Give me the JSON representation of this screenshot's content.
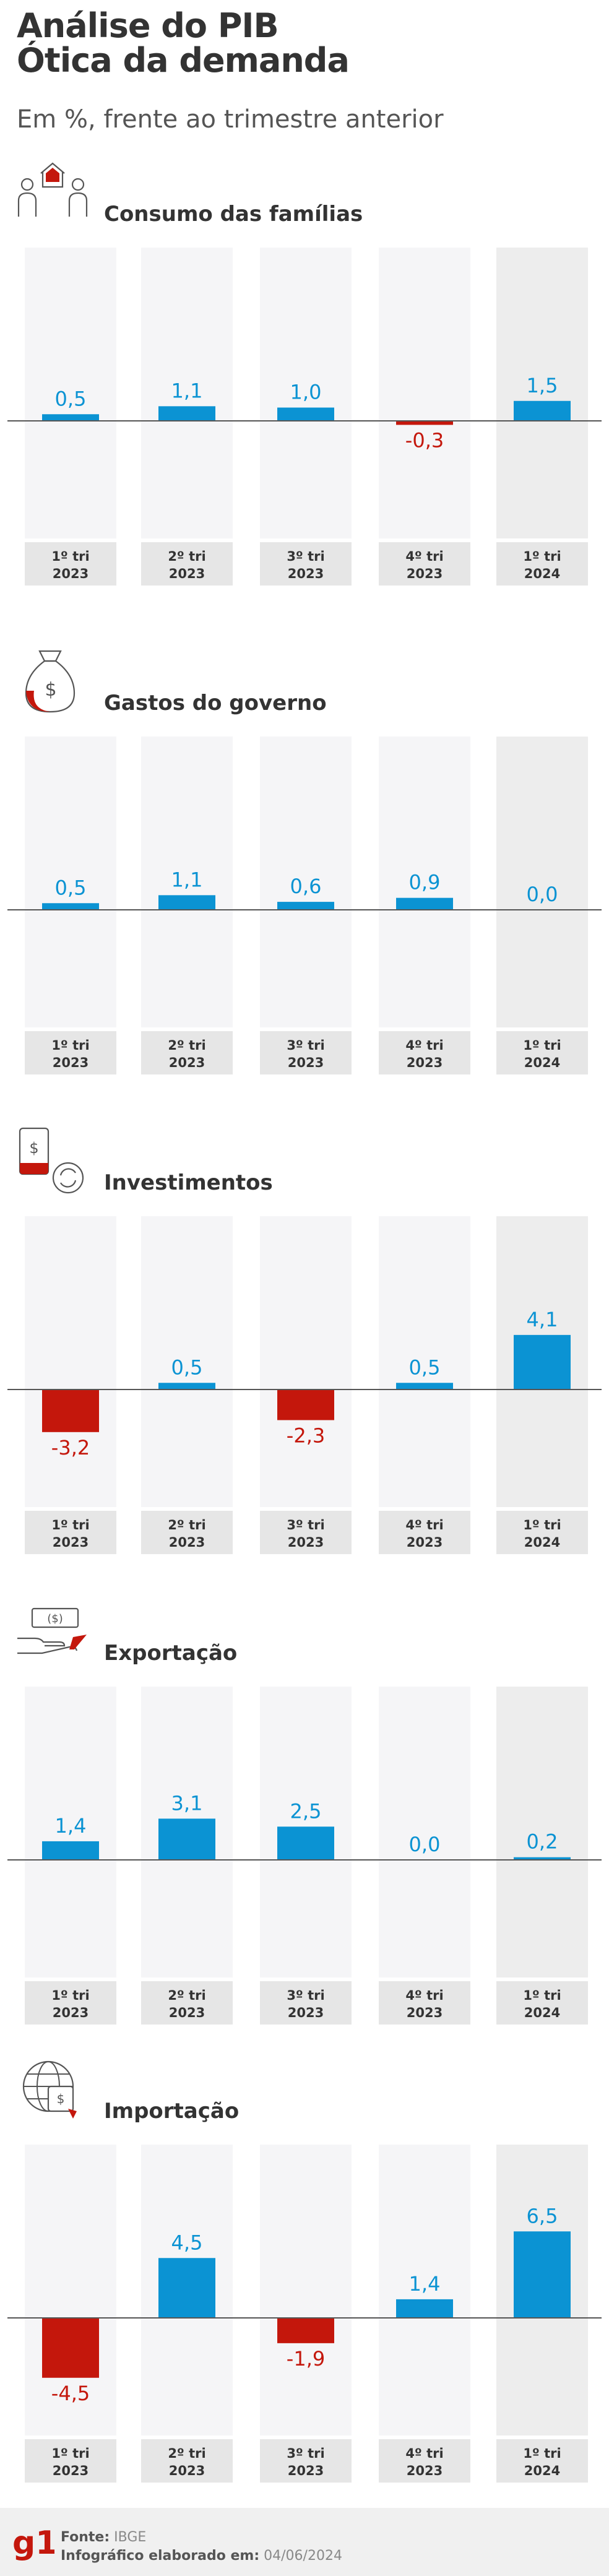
{
  "header": {
    "title_line1": "Análise do PIB",
    "title_line2": "Ótica da demanda",
    "subtitle": "Em %, frente ao trimestre anterior"
  },
  "colors": {
    "positive": "#0b93d3",
    "negative": "#c4170c",
    "column_bg": "#f5f5f7",
    "label_bg": "#e6e6e6",
    "highlight_bg": "#ededed"
  },
  "chart_data": [
    {
      "type": "bar",
      "title": "Consumo das famílias",
      "icon": "family-home-icon",
      "categories": [
        "1º tri 2023",
        "2º tri 2023",
        "3º tri 2023",
        "4º tri 2023",
        "1º tri 2024"
      ],
      "values": [
        0.5,
        1.1,
        1.0,
        -0.3,
        1.5
      ],
      "value_labels": [
        "0,5",
        "1,1",
        "1,0",
        "-0,3",
        "1,5"
      ],
      "ylim": [
        -5,
        5
      ]
    },
    {
      "type": "bar",
      "title": "Gastos do governo",
      "icon": "money-bag-icon",
      "categories": [
        "1º tri 2023",
        "2º tri 2023",
        "3º tri 2023",
        "4º tri 2023",
        "1º tri 2024"
      ],
      "values": [
        0.5,
        1.1,
        0.6,
        0.9,
        0.0
      ],
      "value_labels": [
        "0,5",
        "1,1",
        "0,6",
        "0,9",
        "0,0"
      ],
      "ylim": [
        -5,
        5
      ]
    },
    {
      "type": "bar",
      "title": "Investimentos",
      "icon": "investment-icon",
      "categories": [
        "1º tri 2023",
        "2º tri 2023",
        "3º tri 2023",
        "4º tri 2023",
        "1º tri 2024"
      ],
      "values": [
        -3.2,
        0.5,
        -2.3,
        0.5,
        4.1
      ],
      "value_labels": [
        "-3,2",
        "0,5",
        "-2,3",
        "0,5",
        "4,1"
      ],
      "ylim": [
        -5,
        5
      ]
    },
    {
      "type": "bar",
      "title": "Exportação",
      "icon": "export-hand-icon",
      "categories": [
        "1º tri 2023",
        "2º tri 2023",
        "3º tri 2023",
        "4º tri 2023",
        "1º tri 2024"
      ],
      "values": [
        1.4,
        3.1,
        2.5,
        0.0,
        0.2
      ],
      "value_labels": [
        "1,4",
        "3,1",
        "2,5",
        "0,0",
        "0,2"
      ],
      "ylim": [
        -5,
        5
      ]
    },
    {
      "type": "bar",
      "title": "Importação",
      "icon": "import-globe-icon",
      "categories": [
        "1º tri 2023",
        "2º tri 2023",
        "3º tri 2023",
        "4º tri 2023",
        "1º tri 2024"
      ],
      "values": [
        -4.5,
        4.5,
        -1.9,
        1.4,
        6.5
      ],
      "value_labels": [
        "-4,5",
        "4,5",
        "-1,9",
        "1,4",
        "6,5"
      ],
      "ylim": [
        -5,
        7
      ]
    }
  ],
  "footer": {
    "logo": "g1",
    "source_label": "Fonte:",
    "source_value": "IBGE",
    "credit_label": "Infográfico elaborado em:",
    "credit_value": "04/06/2024"
  }
}
